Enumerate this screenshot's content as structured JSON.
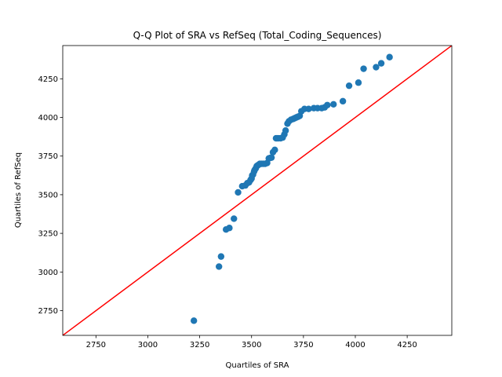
{
  "chart_data": {
    "type": "scatter",
    "title": "Q-Q Plot of SRA vs RefSeq (Total_Coding_Sequences)",
    "xlabel": "Quartiles of SRA",
    "ylabel": "Quartiles of RefSeq",
    "xlim": [
      2590,
      4465
    ],
    "ylim": [
      2590,
      4465
    ],
    "xticks": [
      2750,
      3000,
      3250,
      3500,
      3750,
      4000,
      4250
    ],
    "yticks": [
      2750,
      3000,
      3250,
      3500,
      3750,
      4000,
      4250
    ],
    "xtick_labels": [
      "2750",
      "3000",
      "3250",
      "3500",
      "3750",
      "4000",
      "4250"
    ],
    "ytick_labels": [
      "2750",
      "3000",
      "3250",
      "3500",
      "3750",
      "4000",
      "4250"
    ],
    "grid": false,
    "marker_color": "#1f77b4",
    "reference_line": {
      "points": [
        [
          2590,
          2590
        ],
        [
          4465,
          4465
        ]
      ],
      "color": "#ff0000"
    },
    "x": [
      3222,
      3343,
      3353,
      3377,
      3393,
      3415,
      3435,
      3455,
      3470,
      3480,
      3488,
      3495,
      3500,
      3503,
      3507,
      3512,
      3515,
      3520,
      3525,
      3530,
      3535,
      3540,
      3548,
      3556,
      3565,
      3575,
      3583,
      3590,
      3596,
      3603,
      3612,
      3618,
      3623,
      3630,
      3640,
      3650,
      3658,
      3664,
      3673,
      3680,
      3690,
      3700,
      3708,
      3716,
      3724,
      3732,
      3740,
      3755,
      3775,
      3800,
      3818,
      3838,
      3852,
      3865,
      3895,
      3940,
      3970,
      4015,
      4040,
      4100,
      4125,
      4165
    ],
    "y": [
      2685,
      3035,
      3100,
      3275,
      3285,
      3345,
      3515,
      3555,
      3560,
      3575,
      3580,
      3595,
      3605,
      3625,
      3630,
      3650,
      3660,
      3670,
      3685,
      3690,
      3695,
      3700,
      3700,
      3700,
      3700,
      3705,
      3735,
      3738,
      3740,
      3775,
      3790,
      3865,
      3865,
      3865,
      3865,
      3870,
      3890,
      3915,
      3960,
      3975,
      3985,
      3990,
      3995,
      4000,
      4005,
      4010,
      4040,
      4055,
      4055,
      4060,
      4060,
      4060,
      4065,
      4080,
      4085,
      4105,
      4205,
      4225,
      4315,
      4325,
      4350,
      4390
    ]
  }
}
